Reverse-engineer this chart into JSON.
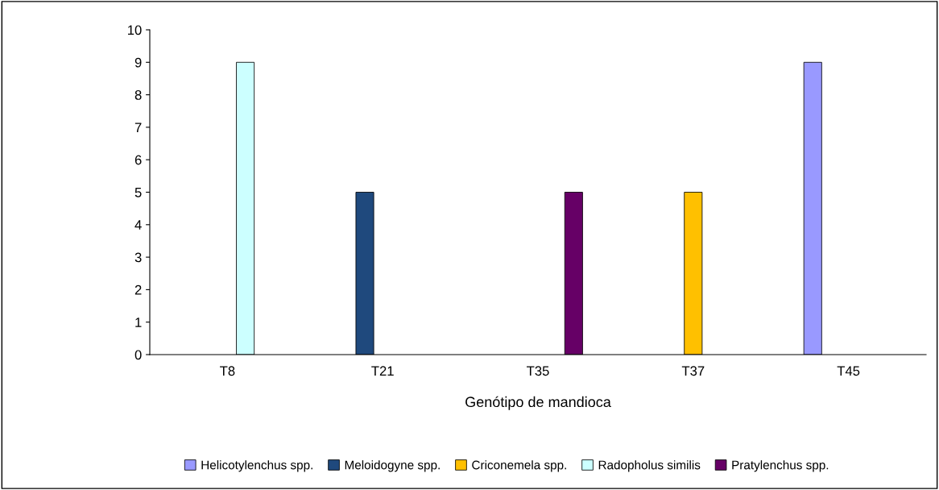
{
  "chart_data": {
    "type": "bar",
    "xlabel": "Genótipo de mandioca",
    "categories": [
      "T8",
      "T21",
      "T35",
      "T37",
      "T45"
    ],
    "series": [
      {
        "name": "Helicotylenchus spp.",
        "color": "#9999ff",
        "values": [
          null,
          null,
          null,
          null,
          9
        ]
      },
      {
        "name": "Meloidogyne spp.",
        "color": "#1f497d",
        "values": [
          null,
          5,
          null,
          null,
          null
        ]
      },
      {
        "name": "Criconemela spp.",
        "color": "#ffc000",
        "values": [
          null,
          null,
          null,
          5,
          null
        ]
      },
      {
        "name": "Radopholus similis",
        "color": "#ccffff",
        "values": [
          9,
          null,
          null,
          null,
          null
        ]
      },
      {
        "name": "Pratylenchus spp.",
        "color": "#660066",
        "values": [
          null,
          null,
          5,
          null,
          null
        ]
      }
    ],
    "ylim": [
      0,
      10
    ],
    "yticks": [
      0,
      1,
      2,
      3,
      4,
      5,
      6,
      7,
      8,
      9,
      10
    ],
    "grid": false,
    "legend": "bottom"
  }
}
